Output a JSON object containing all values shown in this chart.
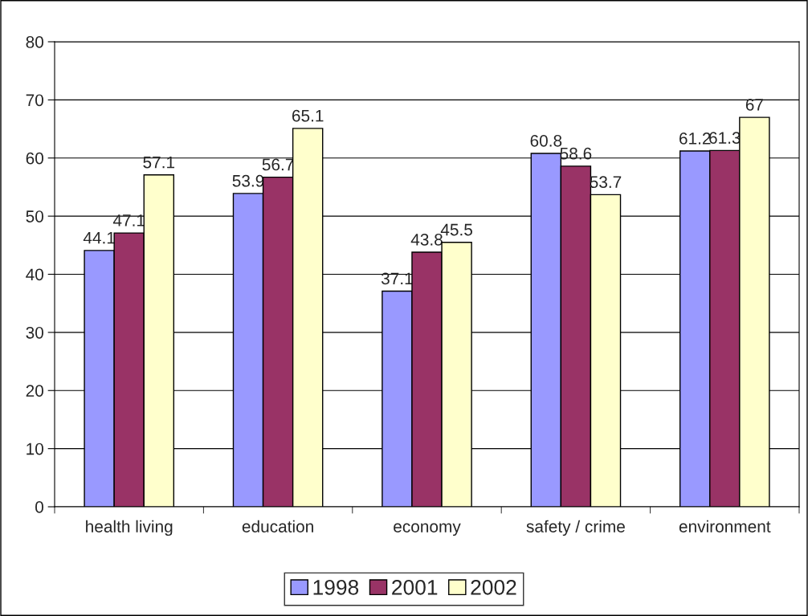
{
  "chart_data": {
    "type": "bar",
    "categories": [
      "health living",
      "education",
      "economy",
      "safety / crime",
      "environment"
    ],
    "series": [
      {
        "name": "1998",
        "color": "#9999ff",
        "values": [
          44.1,
          53.9,
          37.1,
          60.8,
          61.2
        ]
      },
      {
        "name": "2001",
        "color": "#993366",
        "values": [
          47.1,
          56.7,
          43.8,
          58.6,
          61.3
        ]
      },
      {
        "name": "2002",
        "color": "#ffffcc",
        "values": [
          57.1,
          65.1,
          45.5,
          53.7,
          67
        ]
      }
    ],
    "ylim": [
      0,
      80
    ],
    "yticks": [
      0,
      10,
      20,
      30,
      40,
      50,
      60,
      70,
      80
    ],
    "grid": "y",
    "legend": "bottom",
    "data_labels": true
  }
}
